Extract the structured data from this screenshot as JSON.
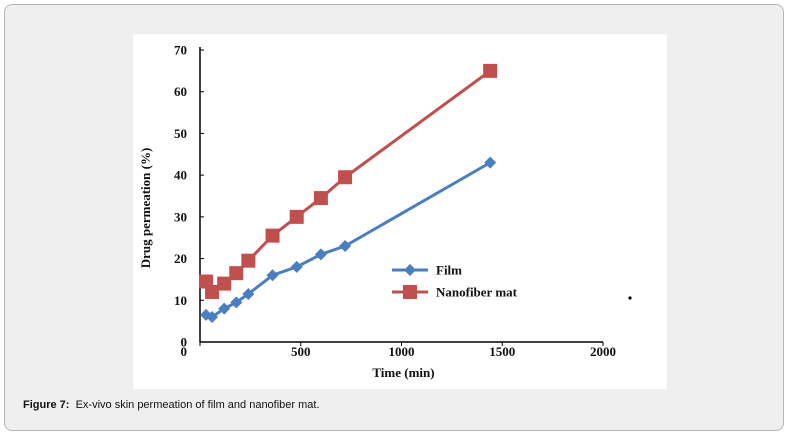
{
  "caption": {
    "label": "Figure 7:",
    "text": "Ex-vivo skin permeation of film and nanofiber mat."
  },
  "chart_data": {
    "type": "line",
    "title": "",
    "xlabel": "Time (min)",
    "ylabel": "Drug permeation (%)",
    "xlim": [
      0,
      2000
    ],
    "ylim": [
      0,
      70
    ],
    "xticks": [
      "0",
      "500",
      "1000",
      "1500",
      "2000"
    ],
    "yticks": [
      "0",
      "10",
      "20",
      "30",
      "40",
      "50",
      "60",
      "70"
    ],
    "grid": false,
    "legend_position": "lower-right",
    "series": [
      {
        "name": "Film",
        "color": "#4a7ebf",
        "marker": "diamond",
        "x": [
          30,
          60,
          120,
          180,
          240,
          360,
          480,
          600,
          720,
          1440
        ],
        "y": [
          6.5,
          6,
          8,
          9.5,
          11.5,
          16,
          18,
          21,
          23,
          43
        ]
      },
      {
        "name": "Nanofiber mat",
        "color": "#c0504d",
        "marker": "square",
        "x": [
          30,
          60,
          120,
          180,
          240,
          360,
          480,
          600,
          720,
          1440
        ],
        "y": [
          14.5,
          12,
          14,
          16.5,
          19.5,
          25.5,
          30,
          34.5,
          39.5,
          65
        ]
      }
    ]
  }
}
